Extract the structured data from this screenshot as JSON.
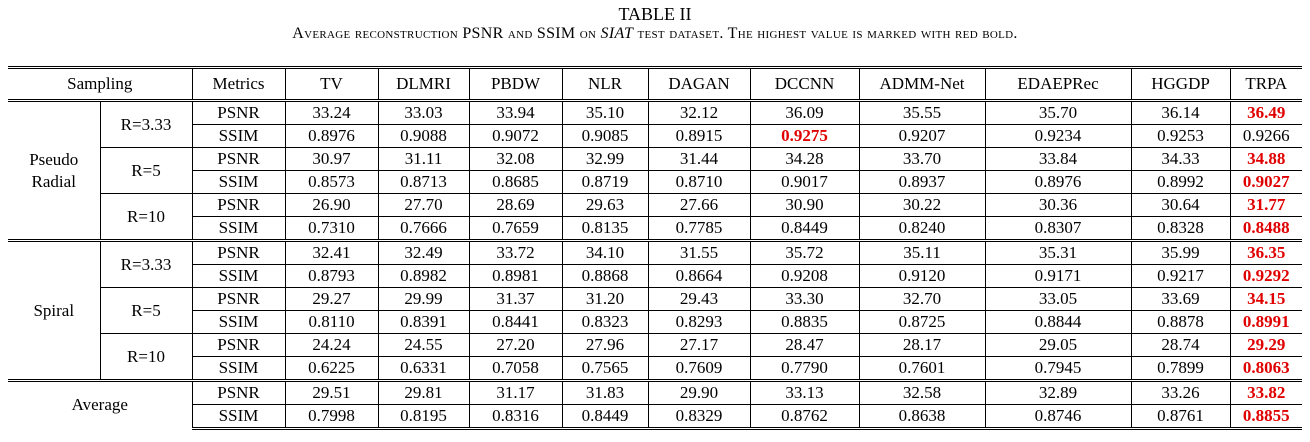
{
  "title": "TABLE II",
  "caption_prefix": "Average reconstruction PSNR and SSIM on ",
  "caption_dataset": "SIAT",
  "caption_suffix": " test dataset. The highest value is marked with red bold.",
  "headers": {
    "sampling": "Sampling",
    "metrics": "Metrics",
    "methods": [
      "TV",
      "DLMRI",
      "PBDW",
      "NLR",
      "DAGAN",
      "DCCNN",
      "ADMM-Net",
      "EDAEPRec",
      "HGGDP",
      "TRPA"
    ]
  },
  "highlight_color": "#e00000",
  "groups": [
    {
      "name": "Pseudo\nRadial",
      "rates": [
        {
          "rate": "R=3.33",
          "psnr": [
            "33.24",
            "33.03",
            "33.94",
            "35.10",
            "32.12",
            "36.09",
            "35.55",
            "35.70",
            "36.14",
            "36.49"
          ],
          "psnr_best": 9,
          "ssim": [
            "0.8976",
            "0.9088",
            "0.9072",
            "0.9085",
            "0.8915",
            "0.9275",
            "0.9207",
            "0.9234",
            "0.9253",
            "0.9266"
          ],
          "ssim_best": 5
        },
        {
          "rate": "R=5",
          "psnr": [
            "30.97",
            "31.11",
            "32.08",
            "32.99",
            "31.44",
            "34.28",
            "33.70",
            "33.84",
            "34.33",
            "34.88"
          ],
          "psnr_best": 9,
          "ssim": [
            "0.8573",
            "0.8713",
            "0.8685",
            "0.8719",
            "0.8710",
            "0.9017",
            "0.8937",
            "0.8976",
            "0.8992",
            "0.9027"
          ],
          "ssim_best": 9
        },
        {
          "rate": "R=10",
          "psnr": [
            "26.90",
            "27.70",
            "28.69",
            "29.63",
            "27.66",
            "30.90",
            "30.22",
            "30.36",
            "30.64",
            "31.77"
          ],
          "psnr_best": 9,
          "ssim": [
            "0.7310",
            "0.7666",
            "0.7659",
            "0.8135",
            "0.7785",
            "0.8449",
            "0.8240",
            "0.8307",
            "0.8328",
            "0.8488"
          ],
          "ssim_best": 9
        }
      ]
    },
    {
      "name": "Spiral",
      "rates": [
        {
          "rate": "R=3.33",
          "psnr": [
            "32.41",
            "32.49",
            "33.72",
            "34.10",
            "31.55",
            "35.72",
            "35.11",
            "35.31",
            "35.99",
            "36.35"
          ],
          "psnr_best": 9,
          "ssim": [
            "0.8793",
            "0.8982",
            "0.8981",
            "0.8868",
            "0.8664",
            "0.9208",
            "0.9120",
            "0.9171",
            "0.9217",
            "0.9292"
          ],
          "ssim_best": 9
        },
        {
          "rate": "R=5",
          "psnr": [
            "29.27",
            "29.99",
            "31.37",
            "31.20",
            "29.43",
            "33.30",
            "32.70",
            "33.05",
            "33.69",
            "34.15"
          ],
          "psnr_best": 9,
          "ssim": [
            "0.8110",
            "0.8391",
            "0.8441",
            "0.8323",
            "0.8293",
            "0.8835",
            "0.8725",
            "0.8844",
            "0.8878",
            "0.8991"
          ],
          "ssim_best": 9
        },
        {
          "rate": "R=10",
          "psnr": [
            "24.24",
            "24.55",
            "27.20",
            "27.96",
            "27.17",
            "28.47",
            "28.17",
            "29.05",
            "28.74",
            "29.29"
          ],
          "psnr_best": 9,
          "ssim": [
            "0.6225",
            "0.6331",
            "0.7058",
            "0.7565",
            "0.7609",
            "0.7790",
            "0.7601",
            "0.7945",
            "0.7899",
            "0.8063"
          ],
          "ssim_best": 9
        }
      ]
    }
  ],
  "average": {
    "name": "Average",
    "psnr": [
      "29.51",
      "29.81",
      "31.17",
      "31.83",
      "29.90",
      "33.13",
      "32.58",
      "32.89",
      "33.26",
      "33.82"
    ],
    "psnr_best": 9,
    "ssim": [
      "0.7998",
      "0.8195",
      "0.8316",
      "0.8449",
      "0.8329",
      "0.8762",
      "0.8638",
      "0.8746",
      "0.8761",
      "0.8855"
    ],
    "ssim_best": 9
  },
  "metric_labels": {
    "psnr": "PSNR",
    "ssim": "SSIM"
  }
}
